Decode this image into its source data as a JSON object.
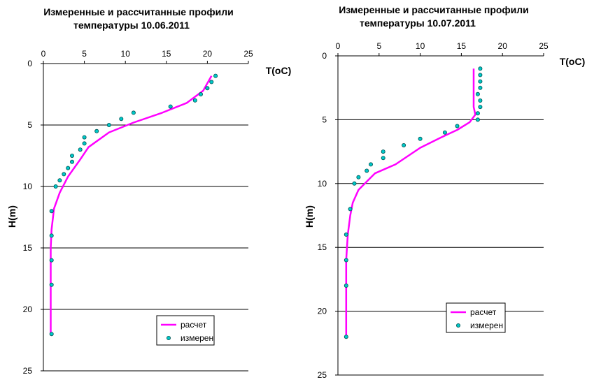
{
  "chart_data": [
    {
      "type": "line",
      "title_line1": "Измеренные и рассчитанные профили",
      "title_line2": "температуры  10.06.2011",
      "xlabel": "T(oC)",
      "ylabel": "H(m)",
      "xlim": [
        0,
        25
      ],
      "ylim": [
        0,
        25
      ],
      "y_inverted": true,
      "x_ticks": [
        "0",
        "5",
        "10",
        "15",
        "20",
        "25"
      ],
      "y_ticks": [
        "0",
        "5",
        "10",
        "15",
        "20",
        "25"
      ],
      "grid": "horizontal",
      "legend_position": "bottom-right",
      "series": [
        {
          "name": "расчет",
          "style": "line",
          "color": "#ff00ff",
          "points": [
            [
              20.5,
              1.0
            ],
            [
              19.5,
              2.2
            ],
            [
              17.5,
              3.2
            ],
            [
              14.5,
              4.0
            ],
            [
              11.0,
              4.8
            ],
            [
              8.0,
              5.6
            ],
            [
              5.5,
              6.8
            ],
            [
              4.5,
              7.8
            ],
            [
              3.0,
              9.2
            ],
            [
              2.0,
              10.5
            ],
            [
              1.3,
              11.8
            ],
            [
              1.0,
              13.5
            ],
            [
              0.9,
              15
            ],
            [
              0.9,
              18
            ],
            [
              0.9,
              22
            ]
          ]
        },
        {
          "name": "измерен",
          "style": "marker",
          "color": "#00c8c8",
          "points": [
            [
              21.0,
              1.0
            ],
            [
              20.5,
              1.5
            ],
            [
              20.0,
              2.0
            ],
            [
              19.2,
              2.5
            ],
            [
              18.5,
              3.0
            ],
            [
              15.5,
              3.5
            ],
            [
              11.0,
              4.0
            ],
            [
              9.5,
              4.5
            ],
            [
              8.0,
              5.0
            ],
            [
              6.5,
              5.5
            ],
            [
              5.0,
              6.0
            ],
            [
              5.0,
              6.5
            ],
            [
              4.5,
              7.0
            ],
            [
              3.5,
              7.5
            ],
            [
              3.5,
              8.0
            ],
            [
              3.0,
              8.5
            ],
            [
              2.5,
              9.0
            ],
            [
              2.0,
              9.5
            ],
            [
              1.5,
              10.0
            ],
            [
              1.0,
              12.0
            ],
            [
              1.0,
              14.0
            ],
            [
              1.0,
              16.0
            ],
            [
              1.0,
              18.0
            ],
            [
              1.0,
              22.0
            ]
          ]
        }
      ]
    },
    {
      "type": "line",
      "title_line1": "Измеренные и рассчитанные профили",
      "title_line2": "температуры    10.07.2011",
      "xlabel": "T(oC)",
      "ylabel": "H(m)",
      "xlim": [
        0,
        25
      ],
      "ylim": [
        0,
        25
      ],
      "y_inverted": true,
      "x_ticks": [
        "0",
        "5",
        "10",
        "15",
        "20",
        "25"
      ],
      "y_ticks": [
        "0",
        "5",
        "10",
        "15",
        "20",
        "25"
      ],
      "grid": "horizontal",
      "legend_position": "bottom-right",
      "series": [
        {
          "name": "расчет",
          "style": "line",
          "color": "#ff00ff",
          "points": [
            [
              16.5,
              1.0
            ],
            [
              16.5,
              2.0
            ],
            [
              16.5,
              3.0
            ],
            [
              16.5,
              4.0
            ],
            [
              16.7,
              4.6
            ],
            [
              16.0,
              5.2
            ],
            [
              14.5,
              5.8
            ],
            [
              12.5,
              6.4
            ],
            [
              10.0,
              7.2
            ],
            [
              7.0,
              8.5
            ],
            [
              4.5,
              9.2
            ],
            [
              2.5,
              10.5
            ],
            [
              1.8,
              11.5
            ],
            [
              1.5,
              12.5
            ],
            [
              1.2,
              14.0
            ],
            [
              1.0,
              16.0
            ],
            [
              1.0,
              18.0
            ],
            [
              1.0,
              22.0
            ]
          ]
        },
        {
          "name": "измерен",
          "style": "marker",
          "color": "#00c8c8",
          "points": [
            [
              17.3,
              1.0
            ],
            [
              17.3,
              1.5
            ],
            [
              17.3,
              2.0
            ],
            [
              17.3,
              2.5
            ],
            [
              17.0,
              3.0
            ],
            [
              17.3,
              3.5
            ],
            [
              17.3,
              4.0
            ],
            [
              17.0,
              4.5
            ],
            [
              17.0,
              5.0
            ],
            [
              14.5,
              5.5
            ],
            [
              13.0,
              6.0
            ],
            [
              10.0,
              6.5
            ],
            [
              8.0,
              7.0
            ],
            [
              5.5,
              7.5
            ],
            [
              5.5,
              8.0
            ],
            [
              4.0,
              8.5
            ],
            [
              3.5,
              9.0
            ],
            [
              2.5,
              9.5
            ],
            [
              2.0,
              10.0
            ],
            [
              1.5,
              12.0
            ],
            [
              1.0,
              14.0
            ],
            [
              1.0,
              16.0
            ],
            [
              1.0,
              18.0
            ],
            [
              1.0,
              22.0
            ]
          ]
        }
      ]
    }
  ]
}
